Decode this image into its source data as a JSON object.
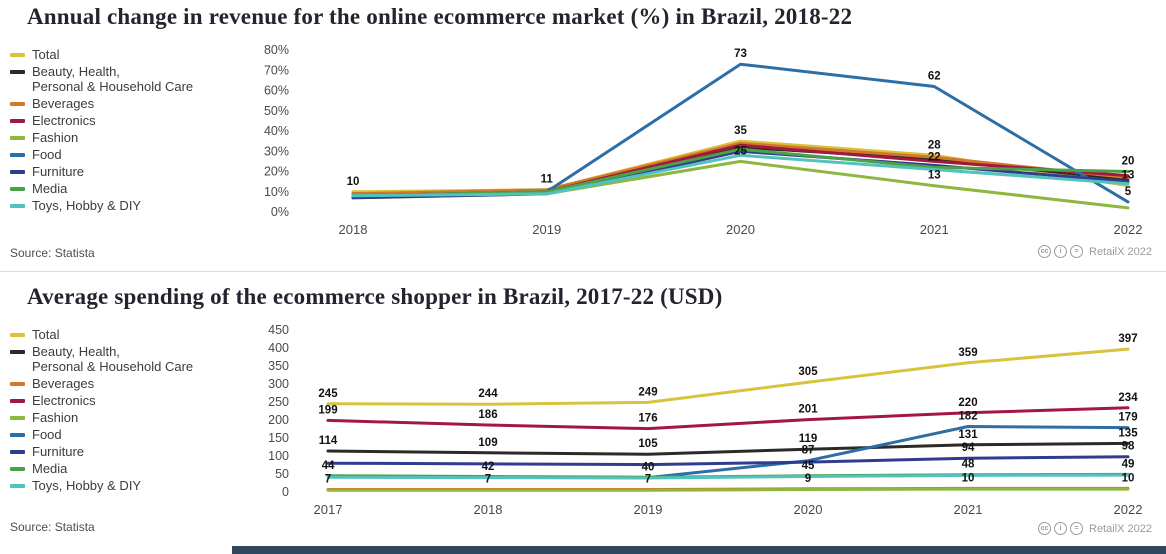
{
  "footer": {
    "bar_color": "#30475e"
  },
  "license": {
    "icons": [
      "cc",
      "i",
      "="
    ],
    "credit": "RetailX 2022"
  },
  "chart_data": [
    {
      "type": "line",
      "title": "Annual change in revenue for the online ecommerce market (%) in Brazil, 2018-22",
      "source": "Source: Statista",
      "credit": "RetailX 2022",
      "categories": [
        "2018",
        "2019",
        "2020",
        "2021",
        "2022"
      ],
      "ylim": [
        0,
        80
      ],
      "ytick_step": 10,
      "ytick_suffix": "%",
      "grid": false,
      "legend_position": "left",
      "series": [
        {
          "name": "Total",
          "legend_lines": [
            "Total"
          ],
          "color": "#d9c23f",
          "values": [
            10,
            11,
            35,
            28,
            13
          ],
          "labels": [
            10,
            11,
            35,
            28,
            13
          ]
        },
        {
          "name": "Beauty, Health, Personal & Household Care",
          "legend_lines": [
            "Beauty, Health,",
            "Personal & Household Care"
          ],
          "color": "#2b2a29",
          "values": [
            9,
            10,
            32,
            26,
            16
          ],
          "labels": null
        },
        {
          "name": "Beverages",
          "legend_lines": [
            "Beverages"
          ],
          "color": "#d2782b",
          "values": [
            9,
            11,
            34,
            27,
            17
          ],
          "labels": null
        },
        {
          "name": "Electronics",
          "legend_lines": [
            "Electronics"
          ],
          "color": "#a31840",
          "values": [
            8,
            10,
            33,
            25,
            18
          ],
          "labels": null
        },
        {
          "name": "Fashion",
          "legend_lines": [
            "Fashion"
          ],
          "color": "#8db73e",
          "values": [
            7,
            9,
            25,
            13,
            2
          ],
          "labels": [
            null,
            null,
            25,
            13,
            null
          ]
        },
        {
          "name": "Food",
          "legend_lines": [
            "Food"
          ],
          "color": "#2d6ea5",
          "values": [
            8,
            10,
            73,
            62,
            5
          ],
          "labels": [
            null,
            null,
            73,
            62,
            5
          ]
        },
        {
          "name": "Furniture",
          "legend_lines": [
            "Furniture"
          ],
          "color": "#323c8e",
          "values": [
            7,
            9,
            30,
            23,
            15
          ],
          "labels": null
        },
        {
          "name": "Media",
          "legend_lines": [
            "Media"
          ],
          "color": "#4aa147",
          "values": [
            8,
            10,
            31,
            22,
            20
          ],
          "labels": [
            null,
            null,
            null,
            22,
            20
          ]
        },
        {
          "name": "Toys, Hobby & DIY",
          "legend_lines": [
            "Toys, Hobby & DIY"
          ],
          "color": "#52c2bc",
          "values": [
            8,
            9,
            28,
            21,
            14
          ],
          "labels": null
        }
      ]
    },
    {
      "type": "line",
      "title": "Average spending of the ecommerce shopper in Brazil, 2017-22 (USD)",
      "source": "Source: Statista",
      "credit": "RetailX 2022",
      "categories": [
        "2017",
        "2018",
        "2019",
        "2020",
        "2021",
        "2022"
      ],
      "ylim": [
        0,
        450
      ],
      "ytick_step": 50,
      "ytick_suffix": "",
      "grid": false,
      "legend_position": "left",
      "series": [
        {
          "name": "Total",
          "legend_lines": [
            "Total"
          ],
          "color": "#d9c23f",
          "values": [
            245,
            244,
            249,
            305,
            359,
            397
          ],
          "labels": [
            245,
            244,
            249,
            305,
            359,
            397
          ]
        },
        {
          "name": "Beauty, Health, Personal & Household Care",
          "legend_lines": [
            "Beauty, Health,",
            "Personal & Household Care"
          ],
          "color": "#2b2a29",
          "values": [
            114,
            109,
            105,
            119,
            131,
            135
          ],
          "labels": [
            114,
            109,
            105,
            119,
            131,
            135
          ]
        },
        {
          "name": "Beverages",
          "legend_lines": [
            "Beverages"
          ],
          "color": "#d2782b",
          "values": [
            7,
            7,
            7,
            9,
            10,
            10
          ],
          "labels": [
            7,
            7,
            7,
            9,
            10,
            10
          ]
        },
        {
          "name": "Electronics",
          "legend_lines": [
            "Electronics"
          ],
          "color": "#a31840",
          "values": [
            199,
            186,
            176,
            201,
            220,
            234
          ],
          "labels": [
            199,
            186,
            176,
            201,
            220,
            234
          ]
        },
        {
          "name": "Fashion",
          "legend_lines": [
            "Fashion"
          ],
          "color": "#8db73e",
          "values": [
            5,
            5,
            5,
            7,
            8,
            8
          ],
          "labels": null
        },
        {
          "name": "Food",
          "legend_lines": [
            "Food"
          ],
          "color": "#2d6ea5",
          "values": [
            44,
            42,
            40,
            87,
            182,
            179
          ],
          "labels": [
            44,
            42,
            40,
            87,
            182,
            179
          ]
        },
        {
          "name": "Furniture",
          "legend_lines": [
            "Furniture"
          ],
          "color": "#323c8e",
          "values": [
            80,
            78,
            76,
            83,
            94,
            98
          ],
          "labels": [
            null,
            null,
            null,
            null,
            94,
            98
          ]
        },
        {
          "name": "Media",
          "legend_lines": [
            "Media"
          ],
          "color": "#4aa147",
          "values": [
            45,
            43,
            41,
            45,
            48,
            49
          ],
          "labels": [
            null,
            null,
            null,
            45,
            48,
            49
          ]
        },
        {
          "name": "Toys, Hobby & DIY",
          "legend_lines": [
            "Toys, Hobby & DIY"
          ],
          "color": "#52c2bc",
          "values": [
            41,
            40,
            39,
            43,
            46,
            47
          ],
          "labels": null
        }
      ]
    }
  ]
}
